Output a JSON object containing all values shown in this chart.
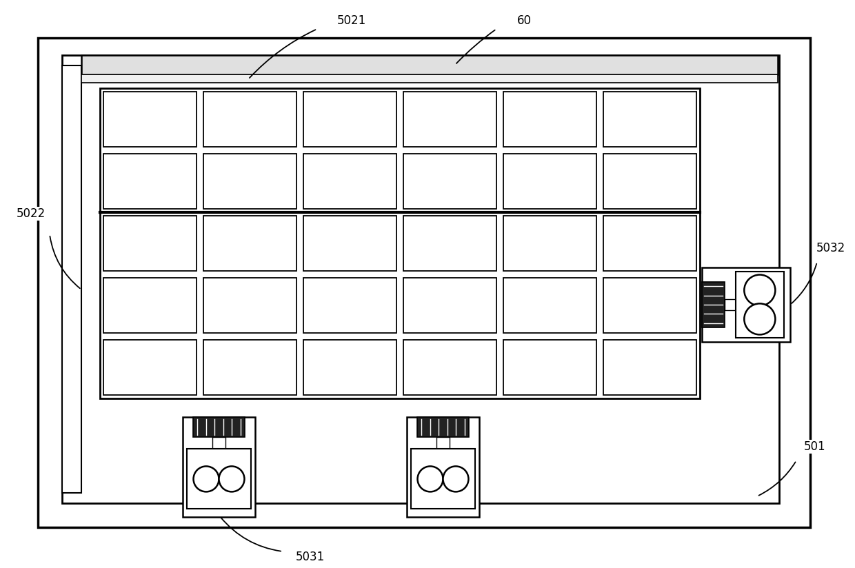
{
  "bg_color": "#ffffff",
  "line_color": "#000000",
  "fig_width": 12.4,
  "fig_height": 8.24,
  "dpi": 100
}
